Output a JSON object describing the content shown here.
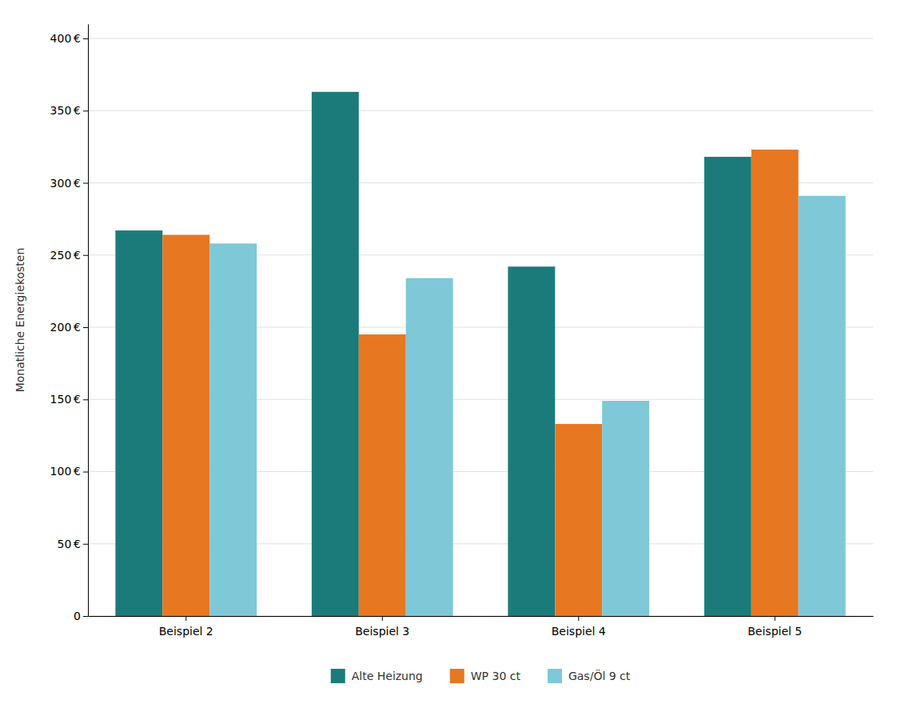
{
  "chart_data": {
    "type": "bar",
    "ylabel": "Monatliche Energiekosten",
    "categories": [
      "Beispiel 2",
      "Beispiel 3",
      "Beispiel 4",
      "Beispiel 5"
    ],
    "series": [
      {
        "name": "Alte Heizung",
        "color": "#1b7b7b",
        "values": [
          267,
          363,
          242,
          318
        ]
      },
      {
        "name": "WP 30 ct",
        "color": "#e87722",
        "values": [
          264,
          195,
          133,
          323
        ]
      },
      {
        "name": "Gas/Öl 9 ct",
        "color": "#7ec8d8",
        "values": [
          258,
          234,
          149,
          291
        ]
      }
    ],
    "ylim": [
      0,
      410
    ],
    "yticks": [
      0,
      {
        "value": 50,
        "label": "50 €"
      },
      {
        "value": 100,
        "label": "100 €"
      },
      {
        "value": 150,
        "label": "150 €"
      },
      {
        "value": 200,
        "label": "200 €"
      },
      {
        "value": 250,
        "label": "250 €"
      },
      {
        "value": 300,
        "label": "300 €"
      },
      {
        "value": 350,
        "label": "350 €"
      },
      {
        "value": 400,
        "label": "400 €"
      }
    ],
    "grid": true,
    "legend": "bottom"
  }
}
